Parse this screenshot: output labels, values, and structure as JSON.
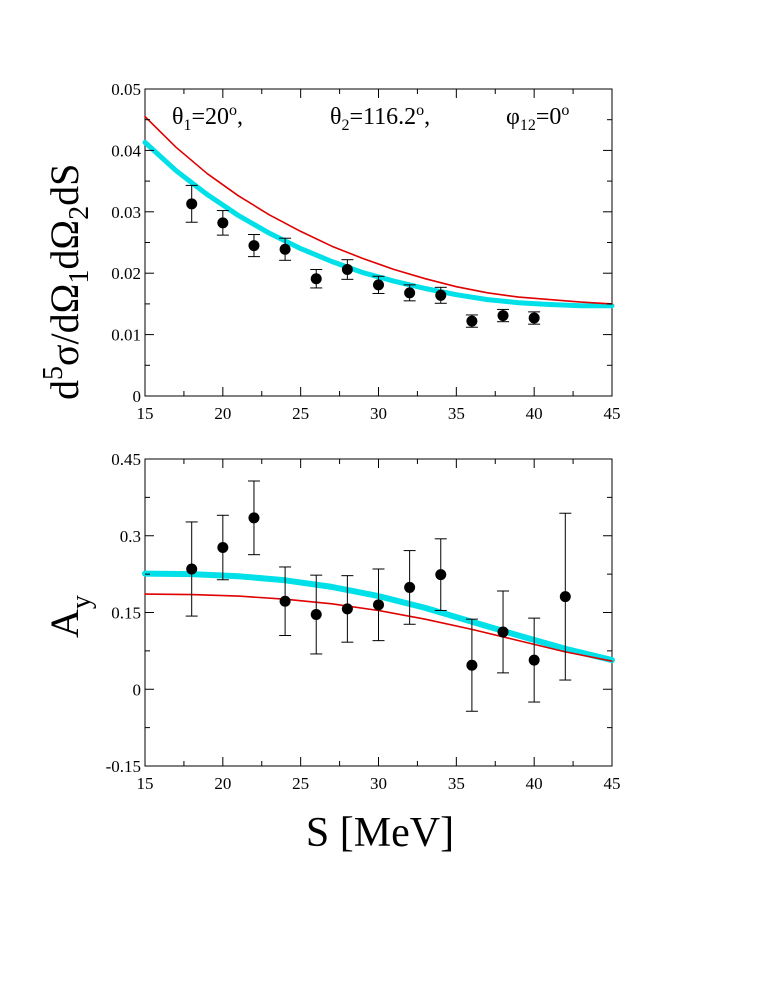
{
  "chart_data": [
    {
      "type": "scatter",
      "annotations": {
        "theta1": {
          "sym": "θ",
          "sub": "1",
          "rest": "=20",
          "sup": "o",
          "end": ","
        },
        "theta2": {
          "sym": "θ",
          "sub": "2",
          "rest": "=116.2",
          "sup": "o",
          "end": ","
        },
        "phi12": {
          "sym": "φ",
          "sub": "12",
          "rest": "=0",
          "sup": "o",
          "end": ""
        }
      },
      "ylabel": {
        "a": "d",
        "a_sup": "5",
        "b": "σ/dΩ",
        "b_sub": "1",
        "c": "dΩ",
        "c_sub": "2",
        "d": "dS"
      },
      "xlim": [
        15,
        45
      ],
      "ylim": [
        0,
        0.05
      ],
      "xticks": [
        "15",
        "20",
        "25",
        "30",
        "35",
        "40",
        "45"
      ],
      "yticks": [
        "0",
        "0.01",
        "0.02",
        "0.03",
        "0.04",
        "0.05"
      ],
      "data": [
        {
          "x": 18,
          "y": 0.0313,
          "err": 0.003
        },
        {
          "x": 20,
          "y": 0.0282,
          "err": 0.002
        },
        {
          "x": 22,
          "y": 0.0245,
          "err": 0.0018
        },
        {
          "x": 24,
          "y": 0.0239,
          "err": 0.0018
        },
        {
          "x": 26,
          "y": 0.0191,
          "err": 0.0015
        },
        {
          "x": 28,
          "y": 0.0206,
          "err": 0.0016
        },
        {
          "x": 30,
          "y": 0.0181,
          "err": 0.0014
        },
        {
          "x": 32,
          "y": 0.0168,
          "err": 0.0013
        },
        {
          "x": 34,
          "y": 0.0164,
          "err": 0.0013
        },
        {
          "x": 36,
          "y": 0.0122,
          "err": 0.001
        },
        {
          "x": 38,
          "y": 0.0131,
          "err": 0.001
        },
        {
          "x": 40,
          "y": 0.0127,
          "err": 0.001
        }
      ],
      "series": [
        {
          "color": "#e00000",
          "x": [
            15,
            17,
            19,
            21,
            23,
            25,
            27,
            29,
            31,
            33,
            35,
            37,
            39,
            41,
            43,
            45
          ],
          "y": [
            0.0455,
            0.0405,
            0.0362,
            0.0326,
            0.0295,
            0.0268,
            0.0244,
            0.0224,
            0.0206,
            0.0191,
            0.0178,
            0.0168,
            0.0161,
            0.0157,
            0.0153,
            0.015
          ]
        },
        {
          "color": "#00e0e8",
          "x": [
            15,
            17,
            19,
            21,
            23,
            25,
            27,
            29,
            31,
            33,
            35,
            37,
            39,
            41,
            43,
            45
          ],
          "y": [
            0.0413,
            0.0367,
            0.0328,
            0.0294,
            0.0265,
            0.024,
            0.0219,
            0.0201,
            0.0187,
            0.0175,
            0.0165,
            0.0157,
            0.0152,
            0.0149,
            0.0147,
            0.0147
          ]
        }
      ]
    },
    {
      "type": "scatter",
      "ylabel": {
        "a": "A",
        "a_sub": "y"
      },
      "xlabel": "S [MeV]",
      "xlim": [
        15,
        45
      ],
      "ylim": [
        -0.15,
        0.45
      ],
      "xticks": [
        "15",
        "20",
        "25",
        "30",
        "35",
        "40",
        "45"
      ],
      "yticks": [
        "-0.15",
        "0",
        "0.15",
        "0.3",
        "0.45"
      ],
      "data": [
        {
          "x": 18,
          "y": 0.235,
          "err": 0.092
        },
        {
          "x": 20,
          "y": 0.277,
          "err": 0.063
        },
        {
          "x": 22,
          "y": 0.335,
          "err": 0.072
        },
        {
          "x": 24,
          "y": 0.172,
          "err": 0.067
        },
        {
          "x": 26,
          "y": 0.146,
          "err": 0.077
        },
        {
          "x": 28,
          "y": 0.157,
          "err": 0.065
        },
        {
          "x": 30,
          "y": 0.165,
          "err": 0.07
        },
        {
          "x": 32,
          "y": 0.199,
          "err": 0.072
        },
        {
          "x": 34,
          "y": 0.224,
          "err": 0.07
        },
        {
          "x": 36,
          "y": 0.047,
          "err": 0.09
        },
        {
          "x": 38,
          "y": 0.112,
          "err": 0.08
        },
        {
          "x": 40,
          "y": 0.057,
          "err": 0.082
        },
        {
          "x": 42,
          "y": 0.181,
          "err": 0.163
        }
      ],
      "series": [
        {
          "color": "#e00000",
          "x": [
            15,
            18,
            21,
            24,
            27,
            30,
            33,
            36,
            39,
            42,
            45
          ],
          "y": [
            0.186,
            0.185,
            0.182,
            0.176,
            0.167,
            0.154,
            0.137,
            0.117,
            0.095,
            0.073,
            0.055
          ]
        },
        {
          "color": "#00e0e8",
          "x": [
            15,
            18,
            21,
            24,
            27,
            30,
            33,
            36,
            39,
            42,
            45
          ],
          "y": [
            0.226,
            0.225,
            0.221,
            0.213,
            0.2,
            0.182,
            0.159,
            0.132,
            0.105,
            0.079,
            0.057
          ]
        }
      ]
    }
  ]
}
